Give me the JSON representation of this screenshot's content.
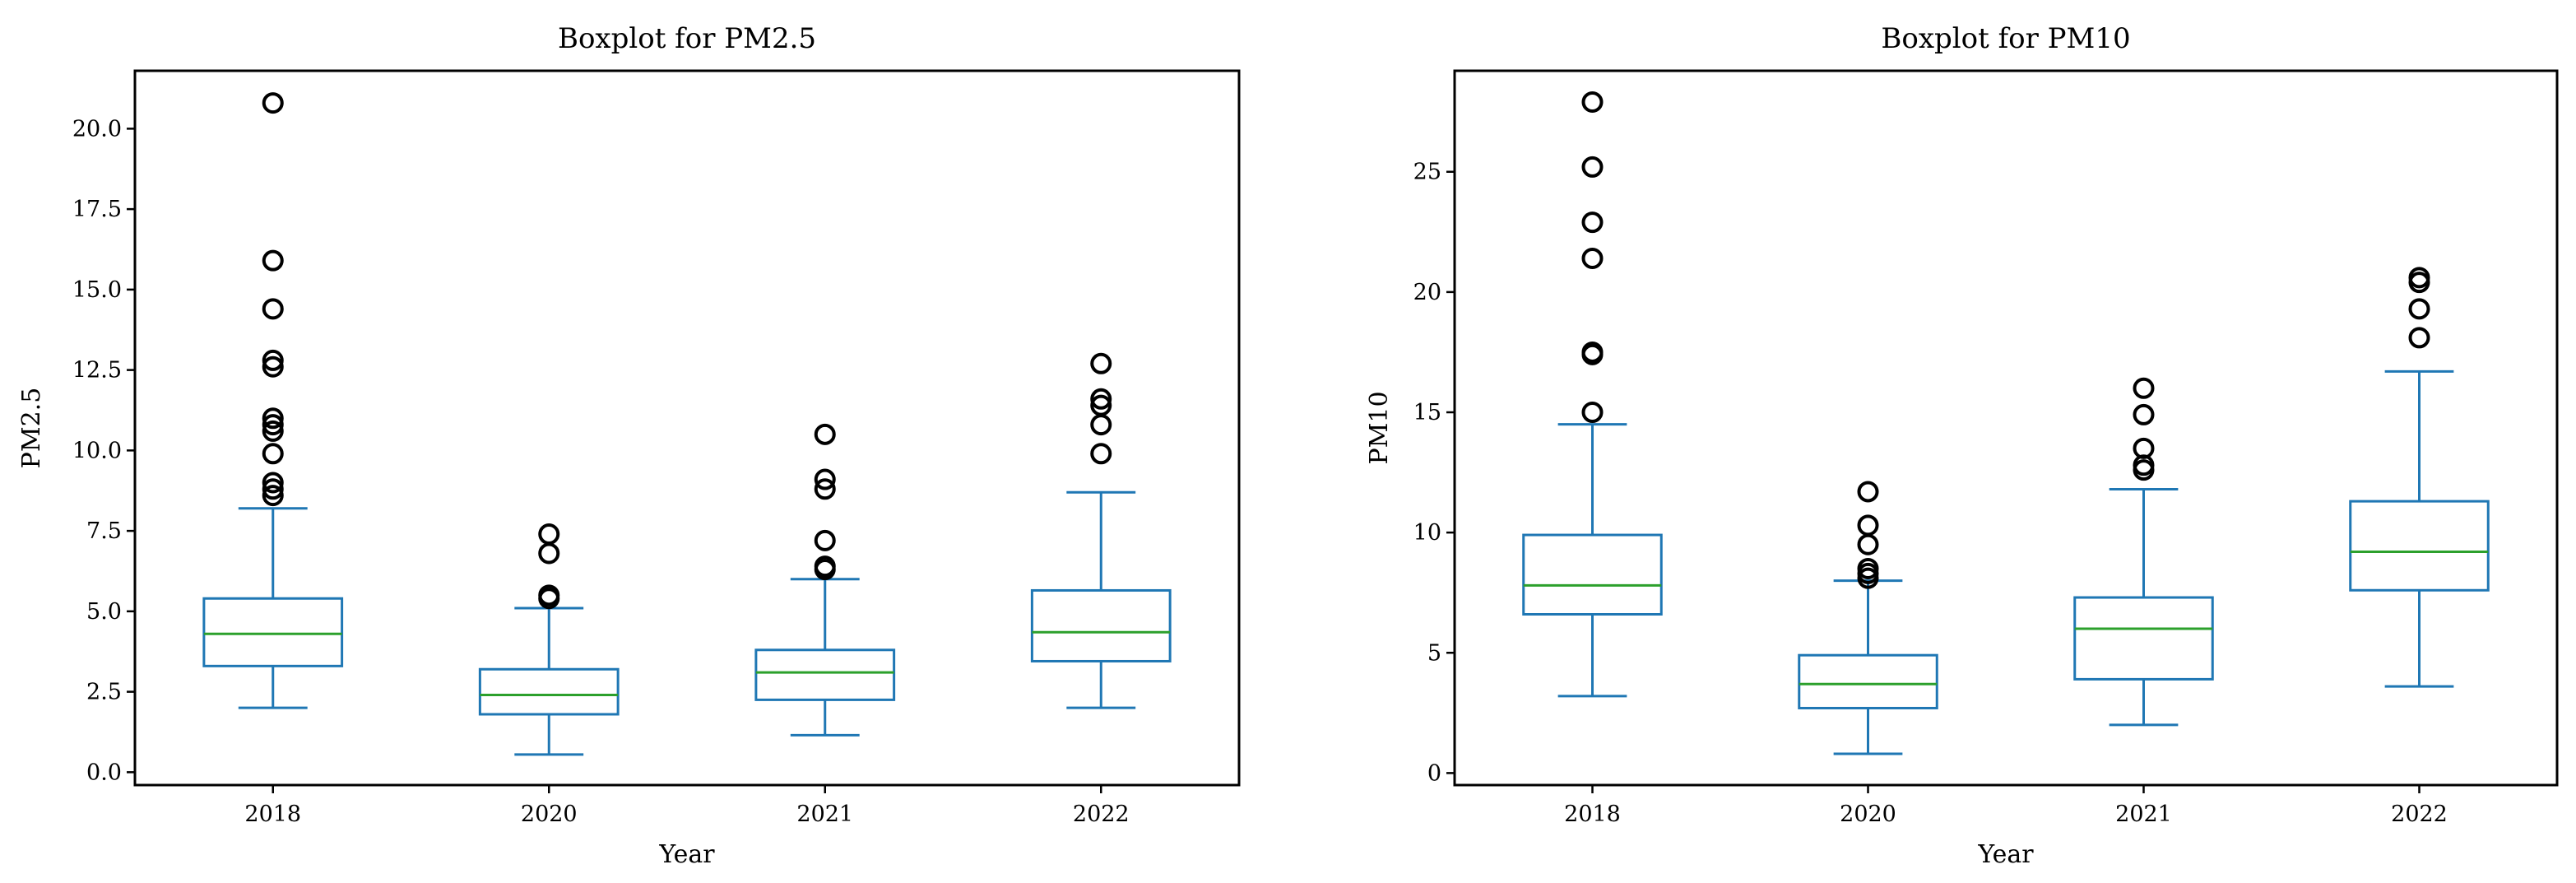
{
  "chart_data": [
    {
      "type": "box",
      "title": "Boxplot for PM2.5",
      "xlabel": "Year",
      "ylabel": "PM2.5",
      "categories": [
        "2018",
        "2020",
        "2021",
        "2022"
      ],
      "ylim": [
        -0.4,
        21.8
      ],
      "yticks": [
        0.0,
        2.5,
        5.0,
        7.5,
        10.0,
        12.5,
        15.0,
        17.5,
        20.0
      ],
      "ytick_labels": [
        "0.0",
        "2.5",
        "5.0",
        "7.5",
        "10.0",
        "12.5",
        "15.0",
        "17.5",
        "20.0"
      ],
      "boxes": [
        {
          "category": "2018",
          "whisker_low": 2.0,
          "q1": 3.3,
          "median": 4.3,
          "q3": 5.4,
          "whisker_high": 8.2,
          "outliers": [
            8.6,
            8.8,
            9.0,
            9.9,
            10.6,
            10.8,
            11.0,
            12.6,
            12.8,
            14.4,
            15.9,
            20.8
          ]
        },
        {
          "category": "2020",
          "whisker_low": 0.55,
          "q1": 1.8,
          "median": 2.4,
          "q3": 3.2,
          "whisker_high": 5.1,
          "outliers": [
            5.4,
            5.5,
            6.8,
            7.4
          ]
        },
        {
          "category": "2021",
          "whisker_low": 1.15,
          "q1": 2.25,
          "median": 3.1,
          "q3": 3.8,
          "whisker_high": 6.0,
          "outliers": [
            6.3,
            6.4,
            7.2,
            8.8,
            9.1,
            10.5
          ]
        },
        {
          "category": "2022",
          "whisker_low": 2.0,
          "q1": 3.45,
          "median": 4.35,
          "q3": 5.65,
          "whisker_high": 8.7,
          "outliers": [
            9.9,
            10.8,
            11.4,
            11.6,
            12.7
          ]
        }
      ]
    },
    {
      "type": "box",
      "title": "Boxplot for PM10",
      "xlabel": "Year",
      "ylabel": "PM10",
      "categories": [
        "2018",
        "2020",
        "2021",
        "2022"
      ],
      "ylim": [
        -0.5,
        29.2
      ],
      "yticks": [
        0,
        5,
        10,
        15,
        20,
        25
      ],
      "ytick_labels": [
        "0",
        "5",
        "10",
        "15",
        "20",
        "25"
      ],
      "boxes": [
        {
          "category": "2018",
          "whisker_low": 3.2,
          "q1": 6.6,
          "median": 7.8,
          "q3": 9.9,
          "whisker_high": 14.5,
          "outliers": [
            15.0,
            17.4,
            17.5,
            21.4,
            22.9,
            25.2,
            27.9
          ]
        },
        {
          "category": "2020",
          "whisker_low": 0.8,
          "q1": 2.7,
          "median": 3.7,
          "q3": 4.9,
          "whisker_high": 8.0,
          "outliers": [
            8.1,
            8.3,
            8.5,
            9.5,
            10.3,
            11.7
          ]
        },
        {
          "category": "2021",
          "whisker_low": 2.0,
          "q1": 3.9,
          "median": 6.0,
          "q3": 7.3,
          "whisker_high": 11.8,
          "outliers": [
            12.6,
            12.8,
            13.5,
            14.9,
            16.0
          ]
        },
        {
          "category": "2022",
          "whisker_low": 3.6,
          "q1": 7.6,
          "median": 9.2,
          "q3": 11.3,
          "whisker_high": 16.7,
          "outliers": [
            18.1,
            19.3,
            20.4,
            20.6
          ]
        }
      ]
    }
  ],
  "colors": {
    "box": "#1f77b4",
    "median": "#2ca02c",
    "outlier": "#000000",
    "axes": "#000000"
  }
}
